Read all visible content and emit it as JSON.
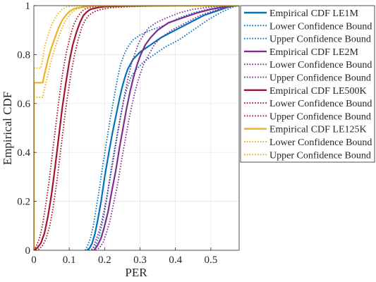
{
  "chart_data": {
    "type": "line",
    "title": "",
    "xlabel": "PER",
    "ylabel": "Empirical CDF",
    "xlim": [
      0,
      0.58
    ],
    "ylim": [
      0,
      1
    ],
    "xticks": [
      0,
      0.1,
      0.2,
      0.3,
      0.4,
      0.5
    ],
    "xtick_labels": [
      "0",
      "0.1",
      "0.2",
      "0.3",
      "0.4",
      "0.5"
    ],
    "yticks": [
      0,
      0.2,
      0.4,
      0.6,
      0.8,
      1
    ],
    "ytick_labels": [
      "0",
      "0.2",
      "0.4",
      "0.6",
      "0.8",
      "1"
    ],
    "grid": true,
    "legend_position": "outside-right-top",
    "series": [
      {
        "name": "Empirical CDF LE1M",
        "color": "#0072BD",
        "dash": "solid",
        "x": [
          0.15,
          0.158,
          0.165,
          0.173,
          0.18,
          0.19,
          0.2,
          0.212,
          0.222,
          0.232,
          0.242,
          0.25,
          0.258,
          0.265,
          0.28,
          0.3,
          0.33,
          0.36,
          0.4,
          0.44,
          0.48,
          0.52,
          0.55,
          0.57
        ],
        "y": [
          0,
          0.01,
          0.03,
          0.07,
          0.12,
          0.2,
          0.3,
          0.4,
          0.48,
          0.55,
          0.62,
          0.67,
          0.71,
          0.74,
          0.78,
          0.81,
          0.84,
          0.87,
          0.9,
          0.93,
          0.96,
          0.98,
          0.995,
          1
        ]
      },
      {
        "name": "Lower Confidence Bound",
        "color": "#0072BD",
        "dash": "dotted",
        "x": [
          0.155,
          0.165,
          0.175,
          0.185,
          0.195,
          0.205,
          0.215,
          0.225,
          0.235,
          0.245,
          0.255,
          0.265,
          0.275,
          0.29,
          0.31,
          0.34,
          0.37,
          0.41,
          0.45,
          0.49,
          0.525,
          0.555,
          0.575
        ],
        "y": [
          0,
          0.005,
          0.02,
          0.06,
          0.12,
          0.2,
          0.3,
          0.39,
          0.47,
          0.55,
          0.62,
          0.67,
          0.71,
          0.74,
          0.77,
          0.8,
          0.83,
          0.86,
          0.9,
          0.94,
          0.97,
          0.99,
          1
        ]
      },
      {
        "name": "Upper Confidence Bound",
        "color": "#0072BD",
        "dash": "dotted",
        "x": [
          0.145,
          0.152,
          0.16,
          0.168,
          0.176,
          0.186,
          0.196,
          0.206,
          0.216,
          0.226,
          0.236,
          0.245,
          0.255,
          0.265,
          0.28,
          0.3,
          0.33,
          0.37,
          0.41,
          0.45,
          0.49,
          0.53,
          0.565
        ],
        "y": [
          0,
          0.02,
          0.05,
          0.1,
          0.17,
          0.26,
          0.36,
          0.45,
          0.54,
          0.62,
          0.7,
          0.76,
          0.8,
          0.83,
          0.86,
          0.88,
          0.9,
          0.92,
          0.95,
          0.97,
          0.985,
          0.995,
          1
        ]
      },
      {
        "name": "Empirical CDF LE2M",
        "color": "#7E2F8E",
        "dash": "solid",
        "x": [
          0.17,
          0.18,
          0.19,
          0.2,
          0.21,
          0.22,
          0.232,
          0.242,
          0.252,
          0.262,
          0.272,
          0.282,
          0.292,
          0.302,
          0.315,
          0.33,
          0.35,
          0.38,
          0.42,
          0.46,
          0.5,
          0.54,
          0.56,
          0.575
        ],
        "y": [
          0,
          0.02,
          0.05,
          0.1,
          0.16,
          0.24,
          0.33,
          0.42,
          0.5,
          0.58,
          0.65,
          0.71,
          0.76,
          0.8,
          0.84,
          0.87,
          0.9,
          0.93,
          0.95,
          0.97,
          0.985,
          0.995,
          0.999,
          1
        ]
      },
      {
        "name": "Lower Confidence Bound",
        "color": "#7E2F8E",
        "dash": "dotted",
        "x": [
          0.175,
          0.185,
          0.195,
          0.205,
          0.215,
          0.225,
          0.238,
          0.248,
          0.258,
          0.268,
          0.278,
          0.288,
          0.298,
          0.31,
          0.325,
          0.34,
          0.36,
          0.39,
          0.43,
          0.47,
          0.51,
          0.545,
          0.57
        ],
        "y": [
          0,
          0.01,
          0.03,
          0.07,
          0.12,
          0.19,
          0.28,
          0.37,
          0.45,
          0.53,
          0.6,
          0.66,
          0.71,
          0.76,
          0.8,
          0.84,
          0.87,
          0.9,
          0.93,
          0.96,
          0.98,
          0.993,
          1
        ]
      },
      {
        "name": "Upper Confidence Bound",
        "color": "#7E2F8E",
        "dash": "dotted",
        "x": [
          0.165,
          0.175,
          0.185,
          0.195,
          0.205,
          0.215,
          0.227,
          0.237,
          0.247,
          0.257,
          0.267,
          0.277,
          0.287,
          0.297,
          0.31,
          0.325,
          0.345,
          0.375,
          0.41,
          0.45,
          0.49,
          0.53,
          0.56
        ],
        "y": [
          0,
          0.04,
          0.08,
          0.14,
          0.21,
          0.29,
          0.39,
          0.48,
          0.56,
          0.64,
          0.71,
          0.77,
          0.81,
          0.85,
          0.88,
          0.91,
          0.93,
          0.95,
          0.97,
          0.985,
          0.993,
          0.998,
          1
        ]
      },
      {
        "name": "Empirical CDF LE500K",
        "color": "#A2142F",
        "dash": "solid",
        "x": [
          0.0,
          0.01,
          0.02,
          0.03,
          0.04,
          0.05,
          0.06,
          0.07,
          0.08,
          0.09,
          0.1,
          0.11,
          0.12,
          0.13,
          0.14,
          0.15,
          0.16,
          0.18,
          0.2,
          0.25,
          0.3,
          0.4,
          0.5,
          0.58
        ],
        "y": [
          0,
          0.01,
          0.03,
          0.07,
          0.14,
          0.23,
          0.34,
          0.46,
          0.58,
          0.68,
          0.77,
          0.84,
          0.89,
          0.93,
          0.96,
          0.975,
          0.985,
          0.992,
          0.996,
          0.998,
          0.999,
          1,
          1,
          1
        ]
      },
      {
        "name": "Lower Confidence Bound",
        "color": "#A2142F",
        "dash": "dotted",
        "x": [
          0.005,
          0.015,
          0.025,
          0.035,
          0.045,
          0.055,
          0.065,
          0.075,
          0.085,
          0.095,
          0.105,
          0.115,
          0.125,
          0.135,
          0.145,
          0.155,
          0.17,
          0.19,
          0.22,
          0.27,
          0.35,
          0.45,
          0.58
        ],
        "y": [
          0,
          0.005,
          0.02,
          0.05,
          0.1,
          0.18,
          0.28,
          0.4,
          0.52,
          0.63,
          0.72,
          0.8,
          0.86,
          0.91,
          0.94,
          0.96,
          0.975,
          0.985,
          0.992,
          0.996,
          0.999,
          1,
          1
        ]
      },
      {
        "name": "Upper Confidence Bound",
        "color": "#A2142F",
        "dash": "dotted",
        "x": [
          0.0,
          0.008,
          0.016,
          0.024,
          0.032,
          0.042,
          0.052,
          0.062,
          0.072,
          0.082,
          0.092,
          0.102,
          0.112,
          0.122,
          0.132,
          0.142,
          0.155,
          0.175,
          0.2,
          0.25,
          0.32,
          0.42,
          0.58
        ],
        "y": [
          0,
          0.02,
          0.05,
          0.1,
          0.17,
          0.27,
          0.39,
          0.51,
          0.63,
          0.73,
          0.81,
          0.87,
          0.92,
          0.95,
          0.97,
          0.985,
          0.992,
          0.996,
          0.998,
          0.999,
          1,
          1,
          1
        ]
      },
      {
        "name": "Empirical CDF LE125K",
        "color": "#EDB120",
        "dash": "solid",
        "x": [
          0.0,
          0.0,
          0.025,
          0.03,
          0.04,
          0.05,
          0.06,
          0.07,
          0.08,
          0.09,
          0.1,
          0.11,
          0.12,
          0.14,
          0.16,
          0.2,
          0.3,
          0.58
        ],
        "y": [
          0,
          0.685,
          0.685,
          0.72,
          0.78,
          0.83,
          0.87,
          0.91,
          0.94,
          0.96,
          0.975,
          0.985,
          0.99,
          0.995,
          0.999,
          1,
          1,
          1
        ]
      },
      {
        "name": "Lower Confidence Bound",
        "color": "#EDB120",
        "dash": "dotted",
        "x": [
          0.0,
          0.0,
          0.025,
          0.03,
          0.04,
          0.05,
          0.06,
          0.07,
          0.08,
          0.09,
          0.1,
          0.11,
          0.12,
          0.13,
          0.15,
          0.18,
          0.22,
          0.58
        ],
        "y": [
          0,
          0.625,
          0.625,
          0.66,
          0.72,
          0.78,
          0.83,
          0.87,
          0.91,
          0.94,
          0.96,
          0.975,
          0.985,
          0.99,
          0.995,
          0.999,
          1,
          1
        ]
      },
      {
        "name": "Upper Confidence Bound",
        "color": "#EDB120",
        "dash": "dotted",
        "x": [
          0.0,
          0.0,
          0.02,
          0.025,
          0.03,
          0.04,
          0.05,
          0.06,
          0.07,
          0.08,
          0.09,
          0.1,
          0.11,
          0.13,
          0.15,
          0.58
        ],
        "y": [
          0,
          0.745,
          0.745,
          0.78,
          0.83,
          0.88,
          0.92,
          0.95,
          0.97,
          0.985,
          0.993,
          0.997,
          0.999,
          1,
          1,
          1
        ]
      }
    ]
  }
}
